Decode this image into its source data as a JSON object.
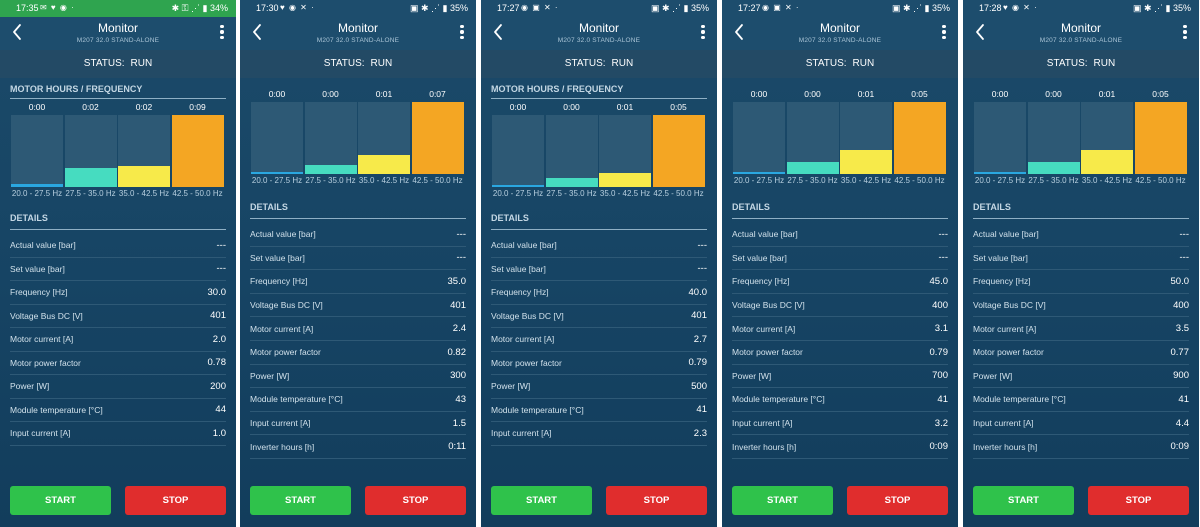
{
  "colors": {
    "bar_blue": "#2aa7e0",
    "bar_teal": "#46dcc0",
    "bar_yellow": "#f7ea4a",
    "bar_orange": "#f4a623",
    "start_green": "#2fc24b",
    "stop_red": "#e02d2d"
  },
  "icons": {
    "back": "back-arrow-icon",
    "menu": "more-vertical-icon"
  },
  "screens": [
    {
      "time": "17:35",
      "status_icons": "✉ ♥ ◉ ·",
      "status_right": "✱ ⚿ ⋰ ▮ 34%",
      "title": "Monitor",
      "subtitle": "M207 32.0 STAND-ALONE",
      "status_label": "STATUS:",
      "status_value": "RUN",
      "show_chart_title": true,
      "chart_title": "MOTOR HOURS / FREQUENCY",
      "bars": [
        {
          "value": "0:00",
          "label": "20.0 - 27.5 Hz",
          "fill": 0.04
        },
        {
          "value": "0:02",
          "label": "27.5 - 35.0 Hz",
          "fill": 0.26
        },
        {
          "value": "0:02",
          "label": "35.0 - 42.5 Hz",
          "fill": 0.29
        },
        {
          "value": "0:09",
          "label": "42.5 - 50.0 Hz",
          "fill": 1.0
        }
      ],
      "details_title": "DETAILS",
      "details": [
        {
          "label": "Actual value [bar]",
          "value": "---"
        },
        {
          "label": "Set value [bar]",
          "value": "---"
        },
        {
          "label": "Frequency [Hz]",
          "value": "30.0"
        },
        {
          "label": "Voltage Bus DC [V]",
          "value": "401"
        },
        {
          "label": "Motor current [A]",
          "value": "2.0"
        },
        {
          "label": "Motor power factor",
          "value": "0.78"
        },
        {
          "label": "Power [W]",
          "value": "200"
        },
        {
          "label": "Module temperature [°C]",
          "value": "44"
        },
        {
          "label": "Input current [A]",
          "value": "1.0"
        }
      ],
      "start": "START",
      "stop": "STOP"
    },
    {
      "time": "17:30",
      "status_icons": "♥ ◉ ✕ ·",
      "status_right": "▣ ✱ ⋰ ▮ 35%",
      "title": "Monitor",
      "subtitle": "M207 32.0 STAND-ALONE",
      "status_label": "STATUS:",
      "status_value": "RUN",
      "show_chart_title": false,
      "chart_title": "",
      "bars": [
        {
          "value": "0:00",
          "label": "20.0 - 27.5 Hz",
          "fill": 0.03
        },
        {
          "value": "0:00",
          "label": "27.5 - 35.0 Hz",
          "fill": 0.13
        },
        {
          "value": "0:01",
          "label": "35.0 - 42.5 Hz",
          "fill": 0.27
        },
        {
          "value": "0:07",
          "label": "42.5 - 50.0 Hz",
          "fill": 1.0
        }
      ],
      "details_title": "DETAILS",
      "details": [
        {
          "label": "Actual value [bar]",
          "value": "---"
        },
        {
          "label": "Set value [bar]",
          "value": "---"
        },
        {
          "label": "Frequency [Hz]",
          "value": "35.0"
        },
        {
          "label": "Voltage Bus DC [V]",
          "value": "401"
        },
        {
          "label": "Motor current [A]",
          "value": "2.4"
        },
        {
          "label": "Motor power factor",
          "value": "0.82"
        },
        {
          "label": "Power [W]",
          "value": "300"
        },
        {
          "label": "Module temperature [°C]",
          "value": "43"
        },
        {
          "label": "Input current [A]",
          "value": "1.5"
        },
        {
          "label": "Inverter hours [h]",
          "value": "0:11"
        }
      ],
      "start": "START",
      "stop": "STOP"
    },
    {
      "time": "17:27",
      "status_icons": "◉ ▣ ✕ ·",
      "status_right": "▣ ✱ ⋰ ▮ 35%",
      "title": "Monitor",
      "subtitle": "M207 32.0 STAND-ALONE",
      "status_label": "STATUS:",
      "status_value": "RUN",
      "show_chart_title": true,
      "chart_title": "MOTOR HOURS / FREQUENCY",
      "bars": [
        {
          "value": "0:00",
          "label": "20.0 - 27.5 Hz",
          "fill": 0.03
        },
        {
          "value": "0:00",
          "label": "27.5 - 35.0 Hz",
          "fill": 0.13
        },
        {
          "value": "0:01",
          "label": "35.0 - 42.5 Hz",
          "fill": 0.19
        },
        {
          "value": "0:05",
          "label": "42.5 - 50.0 Hz",
          "fill": 1.0
        }
      ],
      "details_title": "DETAILS",
      "details": [
        {
          "label": "Actual value [bar]",
          "value": "---"
        },
        {
          "label": "Set value [bar]",
          "value": "---"
        },
        {
          "label": "Frequency [Hz]",
          "value": "40.0"
        },
        {
          "label": "Voltage Bus DC [V]",
          "value": "401"
        },
        {
          "label": "Motor current [A]",
          "value": "2.7"
        },
        {
          "label": "Motor power factor",
          "value": "0.79"
        },
        {
          "label": "Power [W]",
          "value": "500"
        },
        {
          "label": "Module temperature [°C]",
          "value": "41"
        },
        {
          "label": "Input current [A]",
          "value": "2.3"
        }
      ],
      "start": "START",
      "stop": "STOP"
    },
    {
      "time": "17:27",
      "status_icons": "◉ ▣ ✕ ·",
      "status_right": "▣ ✱ ⋰ ▮ 35%",
      "title": "Monitor",
      "subtitle": "M207 32.0 STAND-ALONE",
      "status_label": "STATUS:",
      "status_value": "RUN",
      "show_chart_title": false,
      "chart_title": "",
      "bars": [
        {
          "value": "0:00",
          "label": "20.0 - 27.5 Hz",
          "fill": 0.03
        },
        {
          "value": "0:00",
          "label": "27.5 - 35.0 Hz",
          "fill": 0.17
        },
        {
          "value": "0:01",
          "label": "35.0 - 42.5 Hz",
          "fill": 0.34
        },
        {
          "value": "0:05",
          "label": "42.5 - 50.0 Hz",
          "fill": 1.0
        }
      ],
      "details_title": "DETAILS",
      "details": [
        {
          "label": "Actual value [bar]",
          "value": "---"
        },
        {
          "label": "Set value [bar]",
          "value": "---"
        },
        {
          "label": "Frequency [Hz]",
          "value": "45.0"
        },
        {
          "label": "Voltage Bus DC [V]",
          "value": "400"
        },
        {
          "label": "Motor current [A]",
          "value": "3.1"
        },
        {
          "label": "Motor power factor",
          "value": "0.79"
        },
        {
          "label": "Power [W]",
          "value": "700"
        },
        {
          "label": "Module temperature [°C]",
          "value": "41"
        },
        {
          "label": "Input current [A]",
          "value": "3.2"
        },
        {
          "label": "Inverter hours [h]",
          "value": "0:09"
        }
      ],
      "start": "START",
      "stop": "STOP"
    },
    {
      "time": "17:28",
      "status_icons": "♥ ◉ ✕ ·",
      "status_right": "▣ ✱ ⋰ ▮ 35%",
      "title": "Monitor",
      "subtitle": "M207 32.0 STAND-ALONE",
      "status_label": "STATUS:",
      "status_value": "RUN",
      "show_chart_title": false,
      "chart_title": "",
      "bars": [
        {
          "value": "0:00",
          "label": "20.0 - 27.5 Hz",
          "fill": 0.03
        },
        {
          "value": "0:00",
          "label": "27.5 - 35.0 Hz",
          "fill": 0.17
        },
        {
          "value": "0:01",
          "label": "35.0 - 42.5 Hz",
          "fill": 0.34
        },
        {
          "value": "0:05",
          "label": "42.5 - 50.0 Hz",
          "fill": 1.0
        }
      ],
      "details_title": "DETAILS",
      "details": [
        {
          "label": "Actual value [bar]",
          "value": "---"
        },
        {
          "label": "Set value [bar]",
          "value": "---"
        },
        {
          "label": "Frequency [Hz]",
          "value": "50.0"
        },
        {
          "label": "Voltage Bus DC [V]",
          "value": "400"
        },
        {
          "label": "Motor current [A]",
          "value": "3.5"
        },
        {
          "label": "Motor power factor",
          "value": "0.77"
        },
        {
          "label": "Power [W]",
          "value": "900"
        },
        {
          "label": "Module temperature [°C]",
          "value": "41"
        },
        {
          "label": "Input current [A]",
          "value": "4.4"
        },
        {
          "label": "Inverter hours [h]",
          "value": "0:09"
        }
      ],
      "start": "START",
      "stop": "STOP"
    }
  ]
}
